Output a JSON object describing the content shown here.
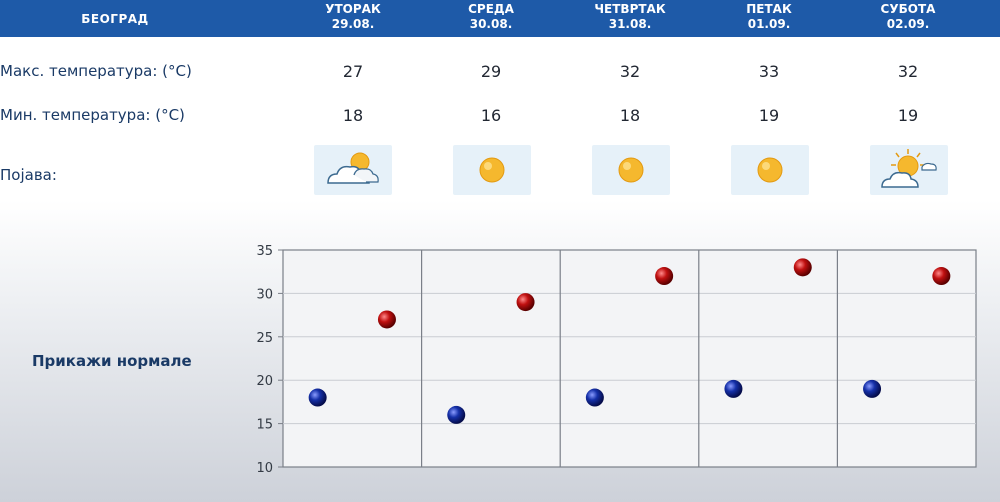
{
  "header": {
    "city": "БЕОГРАД",
    "days": [
      {
        "name": "УТОРАК",
        "date": "29.08."
      },
      {
        "name": "СРЕДА",
        "date": "30.08."
      },
      {
        "name": "ЧЕТВРТАК",
        "date": "31.08."
      },
      {
        "name": "ПЕТАК",
        "date": "01.09."
      },
      {
        "name": "СУБОТА",
        "date": "02.09."
      }
    ]
  },
  "rows": {
    "max_label": "Макс. температура: (°C)",
    "min_label": "Мин. температура: (°C)",
    "phenomenon_label": "Појава:",
    "max_values": [
      "27",
      "29",
      "32",
      "33",
      "32"
    ],
    "min_values": [
      "18",
      "16",
      "18",
      "19",
      "19"
    ],
    "icons": [
      "partly-cloudy-icon",
      "sunny-icon",
      "sunny-icon",
      "sunny-icon",
      "partly-cloudy-icon"
    ]
  },
  "show_normals_label": "Прикажи нормале",
  "colors": {
    "header_bg": "#1e5aa8",
    "max_dot": "#c01010",
    "min_dot": "#1530a8"
  },
  "chart_data": {
    "type": "scatter",
    "categories": [
      "29.08.",
      "30.08.",
      "31.08.",
      "01.09.",
      "02.09."
    ],
    "series": [
      {
        "values": [
          27,
          29,
          32,
          33,
          32
        ]
      },
      {
        "values": [
          18,
          16,
          18,
          19,
          19
        ]
      }
    ],
    "ylim": [
      10,
      35
    ],
    "yticks": [
      "10",
      "15",
      "20",
      "25",
      "30",
      "35"
    ],
    "grid": true
  }
}
